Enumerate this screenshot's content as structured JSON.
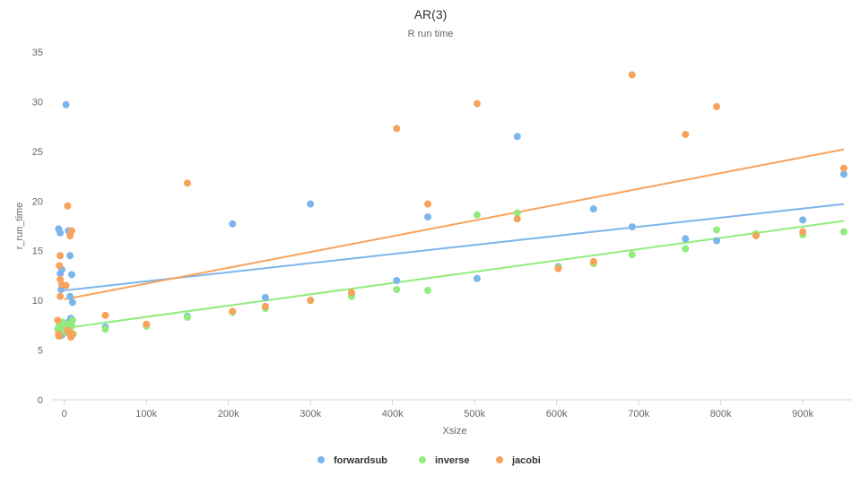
{
  "chart_data": {
    "type": "scatter",
    "title": "AR(3)",
    "subtitle": "R run time",
    "xlabel": "Xsize",
    "ylabel": "r_run_time",
    "xlim": [
      -15000,
      960000
    ],
    "ylim": [
      0,
      35
    ],
    "xticks": [
      0,
      100000,
      200000,
      300000,
      400000,
      500000,
      600000,
      700000,
      800000,
      900000
    ],
    "xtick_labels": [
      "0",
      "100k",
      "200k",
      "300k",
      "400k",
      "500k",
      "600k",
      "700k",
      "800k",
      "900k"
    ],
    "yticks": [
      0,
      5,
      10,
      15,
      20,
      25,
      30,
      35
    ],
    "ytick_labels": [
      "0",
      "5",
      "10",
      "15",
      "20",
      "25",
      "30",
      "35"
    ],
    "grid": "none",
    "legend": "bottom-center",
    "series": [
      {
        "name": "forwardsub",
        "color": "#7cb5ec",
        "trend": [
          [
            0,
            11.0
          ],
          [
            950000,
            19.7
          ]
        ],
        "points": [
          [
            -7000,
            17.2
          ],
          [
            -5000,
            16.8
          ],
          [
            -5000,
            12.7
          ],
          [
            -3000,
            13.1
          ],
          [
            -4000,
            11.1
          ],
          [
            2000,
            29.7
          ],
          [
            5000,
            17.0
          ],
          [
            7000,
            14.5
          ],
          [
            9000,
            12.6
          ],
          [
            7000,
            10.4
          ],
          [
            10000,
            9.8
          ],
          [
            8000,
            8.2
          ],
          [
            6000,
            7.9
          ],
          [
            4000,
            7.6
          ],
          [
            -6000,
            6.8
          ],
          [
            -3000,
            6.5
          ],
          [
            50000,
            7.3
          ],
          [
            100000,
            7.5
          ],
          [
            150000,
            8.4
          ],
          [
            205000,
            17.7
          ],
          [
            245000,
            10.3
          ],
          [
            300000,
            19.7
          ],
          [
            350000,
            10.7
          ],
          [
            405000,
            12.0
          ],
          [
            443000,
            18.4
          ],
          [
            503000,
            12.2
          ],
          [
            552000,
            26.5
          ],
          [
            602000,
            13.4
          ],
          [
            645000,
            19.2
          ],
          [
            692000,
            17.4
          ],
          [
            757000,
            16.2
          ],
          [
            795000,
            16.0
          ],
          [
            843000,
            16.6
          ],
          [
            900000,
            18.1
          ],
          [
            950000,
            22.7
          ]
        ]
      },
      {
        "name": "inverse",
        "color": "#90ed7d",
        "trend": [
          [
            0,
            7.2
          ],
          [
            950000,
            18.0
          ]
        ],
        "points": [
          [
            -8000,
            7.1
          ],
          [
            -6000,
            7.5
          ],
          [
            -4000,
            6.9
          ],
          [
            -2000,
            7.8
          ],
          [
            1000,
            7.2
          ],
          [
            3000,
            6.8
          ],
          [
            5000,
            7.6
          ],
          [
            7000,
            7.0
          ],
          [
            9000,
            7.4
          ],
          [
            11000,
            6.6
          ],
          [
            -7000,
            6.4
          ],
          [
            10000,
            8.0
          ],
          [
            50000,
            7.1
          ],
          [
            100000,
            7.4
          ],
          [
            150000,
            8.3
          ],
          [
            205000,
            8.8
          ],
          [
            245000,
            9.2
          ],
          [
            300000,
            10.0
          ],
          [
            350000,
            10.4
          ],
          [
            405000,
            11.1
          ],
          [
            443000,
            11.0
          ],
          [
            503000,
            18.6
          ],
          [
            552000,
            18.8
          ],
          [
            602000,
            13.3
          ],
          [
            645000,
            13.7
          ],
          [
            692000,
            14.6
          ],
          [
            757000,
            15.2
          ],
          [
            795000,
            17.1
          ],
          [
            843000,
            16.7
          ],
          [
            900000,
            16.6
          ],
          [
            950000,
            16.9
          ]
        ]
      },
      {
        "name": "jacobi",
        "color": "#f7a35c",
        "trend": [
          [
            0,
            10.1
          ],
          [
            950000,
            25.2
          ]
        ],
        "points": [
          [
            -8000,
            8.0
          ],
          [
            -6000,
            13.5
          ],
          [
            -5000,
            14.5
          ],
          [
            -5000,
            12.1
          ],
          [
            -5000,
            10.4
          ],
          [
            -3000,
            11.6
          ],
          [
            2000,
            11.5
          ],
          [
            4000,
            19.5
          ],
          [
            7000,
            16.5
          ],
          [
            9000,
            17.0
          ],
          [
            4000,
            7.0
          ],
          [
            6000,
            6.7
          ],
          [
            8000,
            6.3
          ],
          [
            10000,
            6.6
          ],
          [
            -6000,
            6.4
          ],
          [
            -7000,
            6.6
          ],
          [
            50000,
            8.5
          ],
          [
            100000,
            7.6
          ],
          [
            150000,
            21.8
          ],
          [
            205000,
            8.9
          ],
          [
            245000,
            9.4
          ],
          [
            300000,
            10.0
          ],
          [
            350000,
            10.8
          ],
          [
            405000,
            27.3
          ],
          [
            443000,
            19.7
          ],
          [
            503000,
            29.8
          ],
          [
            552000,
            18.2
          ],
          [
            602000,
            13.2
          ],
          [
            645000,
            13.9
          ],
          [
            692000,
            32.7
          ],
          [
            757000,
            26.7
          ],
          [
            795000,
            29.5
          ],
          [
            843000,
            16.5
          ],
          [
            900000,
            16.9
          ],
          [
            950000,
            23.3
          ]
        ]
      }
    ]
  }
}
